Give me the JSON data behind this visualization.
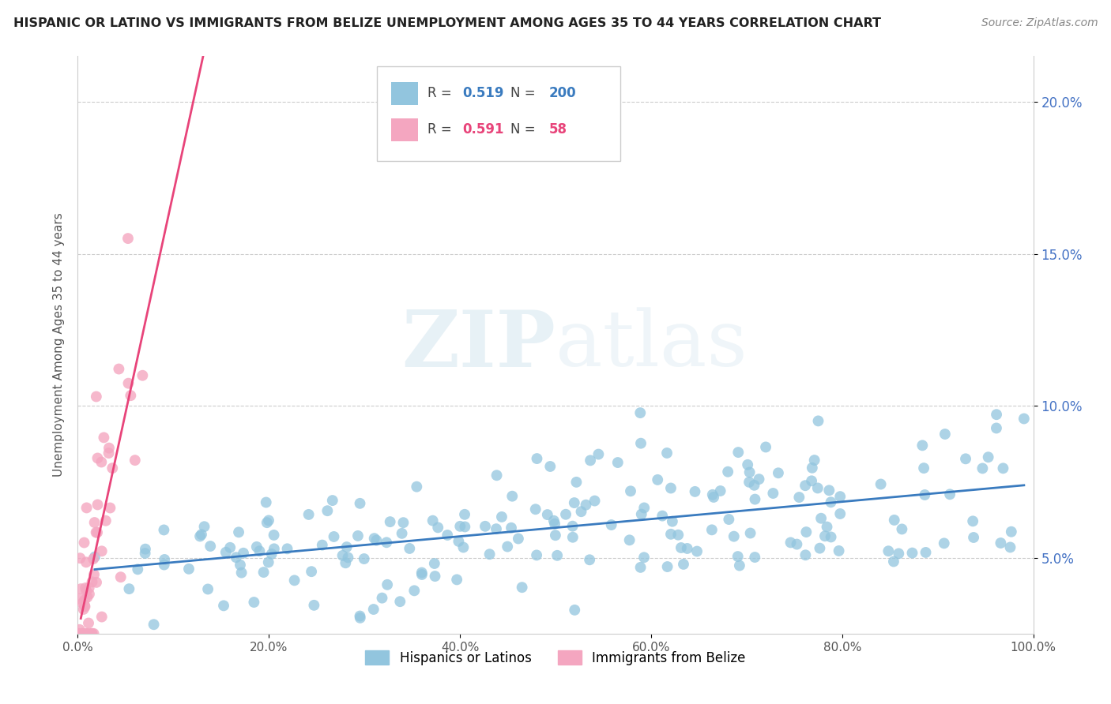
{
  "title": "HISPANIC OR LATINO VS IMMIGRANTS FROM BELIZE UNEMPLOYMENT AMONG AGES 35 TO 44 YEARS CORRELATION CHART",
  "source": "Source: ZipAtlas.com",
  "ylabel": "Unemployment Among Ages 35 to 44 years",
  "xlim": [
    0.0,
    1.0
  ],
  "ylim": [
    0.025,
    0.215
  ],
  "x_ticks": [
    0.0,
    0.2,
    0.4,
    0.6,
    0.8,
    1.0
  ],
  "x_tick_labels": [
    "0.0%",
    "20.0%",
    "40.0%",
    "60.0%",
    "80.0%",
    "100.0%"
  ],
  "y_ticks": [
    0.05,
    0.1,
    0.15,
    0.2
  ],
  "y_tick_labels": [
    "5.0%",
    "10.0%",
    "15.0%",
    "20.0%"
  ],
  "blue_color": "#92c5de",
  "pink_color": "#f4a6c0",
  "blue_line_color": "#3a7bbf",
  "pink_line_color": "#e8447a",
  "watermark_zip": "ZIP",
  "watermark_atlas": "atlas",
  "legend_R_blue": "0.519",
  "legend_N_blue": "200",
  "legend_R_pink": "0.591",
  "legend_N_pink": "58",
  "blue_label": "Hispanics or Latinos",
  "pink_label": "Immigrants from Belize"
}
